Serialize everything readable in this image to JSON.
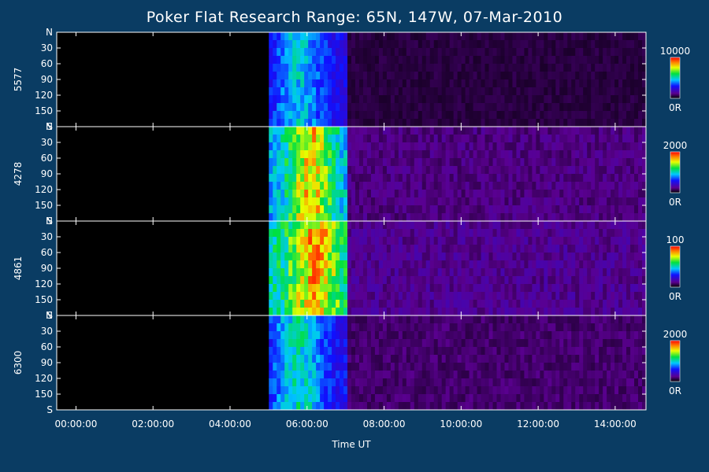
{
  "chart_data": {
    "type": "heatmap",
    "title": "Poker Flat Research Range: 65N, 147W, 07-Mar-2010",
    "xlabel": "Time UT",
    "x_tick_labels": [
      "00:00:00",
      "02:00:00",
      "04:00:00",
      "06:00:00",
      "08:00:00",
      "10:00:00",
      "12:00:00",
      "14:00:00"
    ],
    "x_tick_hours": [
      0,
      2,
      4,
      6,
      8,
      10,
      12,
      14
    ],
    "xlim_hours": [
      -0.5,
      14.8
    ],
    "y_tick_labels": [
      "N",
      "30",
      "60",
      "90",
      "120",
      "150",
      "S"
    ],
    "y_tick_values": [
      0,
      30,
      60,
      90,
      120,
      150,
      180
    ],
    "ylim": [
      0,
      180
    ],
    "colors": {
      "background": "#0a3c63",
      "plot_background": "#000000",
      "axis": "#ffffff"
    },
    "panels": [
      {
        "ylabel": "5577",
        "colorbar_max": "10000",
        "colorbar_min": "0R",
        "max_value": 10000,
        "activity": [
          {
            "start_hour": 5.0,
            "end_hour": 7.0,
            "level": 0.28,
            "peak_hour": 5.8,
            "peak_level": 0.5
          },
          {
            "start_hour": 7.0,
            "end_hour": 14.8,
            "level": 0.06
          }
        ]
      },
      {
        "ylabel": "4278",
        "colorbar_max": "2000",
        "colorbar_min": "0R",
        "max_value": 2000,
        "activity": [
          {
            "start_hour": 5.0,
            "end_hour": 7.0,
            "level": 0.45,
            "peak_hour": 6.1,
            "peak_level": 0.85
          },
          {
            "start_hour": 7.0,
            "end_hour": 14.8,
            "level": 0.12
          }
        ]
      },
      {
        "ylabel": "4861",
        "colorbar_max": "100",
        "colorbar_min": "0R",
        "max_value": 100,
        "activity": [
          {
            "start_hour": 5.0,
            "end_hour": 7.0,
            "level": 0.55,
            "peak_hour": 6.2,
            "peak_level": 0.9
          },
          {
            "start_hour": 7.0,
            "end_hour": 14.8,
            "level": 0.14
          }
        ]
      },
      {
        "ylabel": "6300",
        "colorbar_max": "2000",
        "colorbar_min": "0R",
        "max_value": 2000,
        "activity": [
          {
            "start_hour": 5.0,
            "end_hour": 7.0,
            "level": 0.3,
            "peak_hour": 5.8,
            "peak_level": 0.55
          },
          {
            "start_hour": 7.0,
            "end_hour": 14.8,
            "level": 0.1
          }
        ]
      }
    ]
  }
}
